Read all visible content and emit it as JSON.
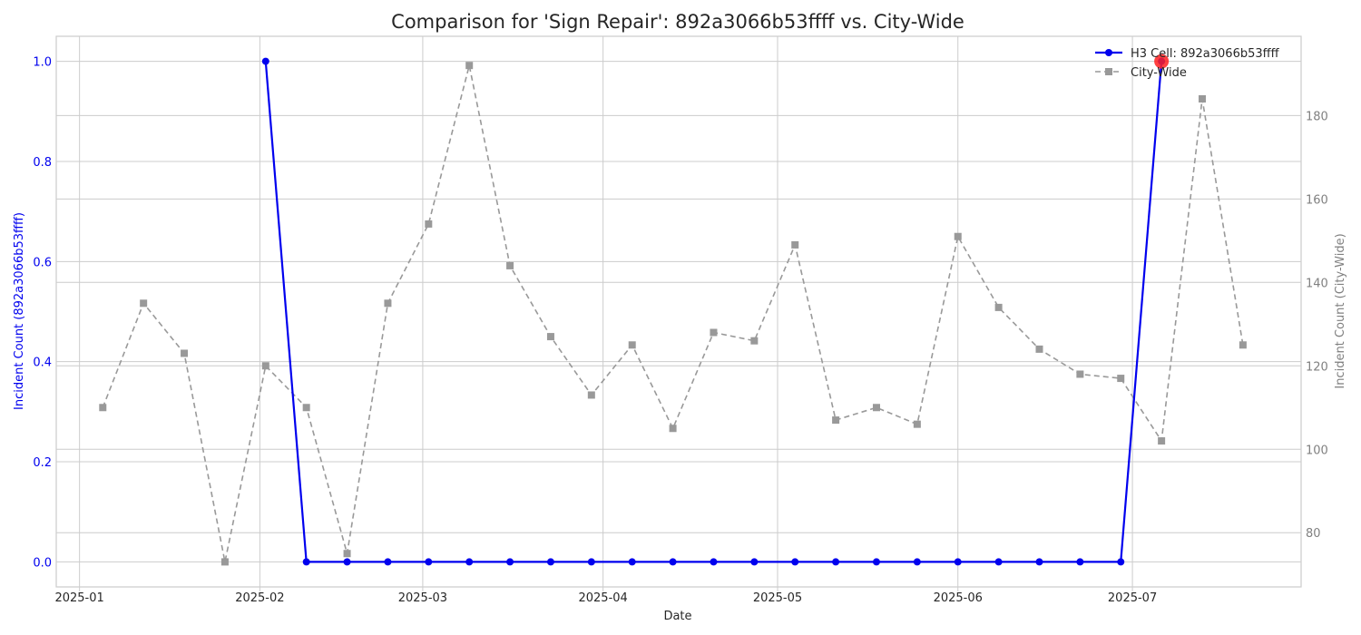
{
  "chart_data": {
    "type": "line",
    "title": "Comparison for 'Sign Repair': 892a3066b53ffff vs. City-Wide",
    "xlabel": "Date",
    "ylabel_left": "Incident Count (892a3066b53ffff)",
    "ylabel_right": "Incident Count (City-Wide)",
    "xlim": [
      "2024-12-28",
      "2025-07-30"
    ],
    "ylim_left": [
      -0.05,
      1.05
    ],
    "ylim_right": [
      67,
      199
    ],
    "x_ticks": [
      "2025-01-01",
      "2025-02-01",
      "2025-03-01",
      "2025-04-01",
      "2025-05-01",
      "2025-06-01",
      "2025-07-01"
    ],
    "x_tick_labels": [
      "2025-01",
      "2025-02",
      "2025-03",
      "2025-04",
      "2025-05",
      "2025-06",
      "2025-07"
    ],
    "yticks_left": [
      "0.0",
      "0.2",
      "0.4",
      "0.6",
      "0.8",
      "1.0"
    ],
    "yticks_right": [
      "80",
      "100",
      "120",
      "140",
      "160",
      "180"
    ],
    "grid": true,
    "legend_position": "top-right",
    "colors": {
      "cell": "#0000ee",
      "city": "#999999",
      "highlight": "#ff2020",
      "left_axis": "#0000ee",
      "right_axis": "#808080"
    },
    "series": [
      {
        "name": "H3 Cell: 892a3066b53ffff",
        "axis": "left",
        "x": [
          "2025-02-02",
          "2025-02-09",
          "2025-02-16",
          "2025-02-23",
          "2025-03-02",
          "2025-03-09",
          "2025-03-16",
          "2025-03-23",
          "2025-03-30",
          "2025-04-06",
          "2025-04-13",
          "2025-04-20",
          "2025-04-27",
          "2025-05-04",
          "2025-05-11",
          "2025-05-18",
          "2025-05-25",
          "2025-06-01",
          "2025-06-08",
          "2025-06-15",
          "2025-06-22",
          "2025-06-29",
          "2025-07-06"
        ],
        "values": [
          1,
          0,
          0,
          0,
          0,
          0,
          0,
          0,
          0,
          0,
          0,
          0,
          0,
          0,
          0,
          0,
          0,
          0,
          0,
          0,
          0,
          0,
          1
        ]
      },
      {
        "name": "City-Wide",
        "axis": "right",
        "x": [
          "2025-01-05",
          "2025-01-12",
          "2025-01-19",
          "2025-01-26",
          "2025-02-02",
          "2025-02-09",
          "2025-02-16",
          "2025-02-23",
          "2025-03-02",
          "2025-03-09",
          "2025-03-16",
          "2025-03-23",
          "2025-03-30",
          "2025-04-06",
          "2025-04-13",
          "2025-04-20",
          "2025-04-27",
          "2025-05-04",
          "2025-05-11",
          "2025-05-18",
          "2025-05-25",
          "2025-06-01",
          "2025-06-08",
          "2025-06-15",
          "2025-06-22",
          "2025-06-29",
          "2025-07-06",
          "2025-07-13",
          "2025-07-20"
        ],
        "values": [
          110,
          135,
          123,
          73,
          120,
          110,
          75,
          135,
          154,
          192,
          144,
          127,
          113,
          125,
          105,
          128,
          126,
          149,
          107,
          110,
          106,
          151,
          134,
          124,
          118,
          117,
          102,
          184,
          125
        ]
      }
    ],
    "highlight": {
      "series": 0,
      "x": "2025-07-06",
      "value": 1
    }
  }
}
